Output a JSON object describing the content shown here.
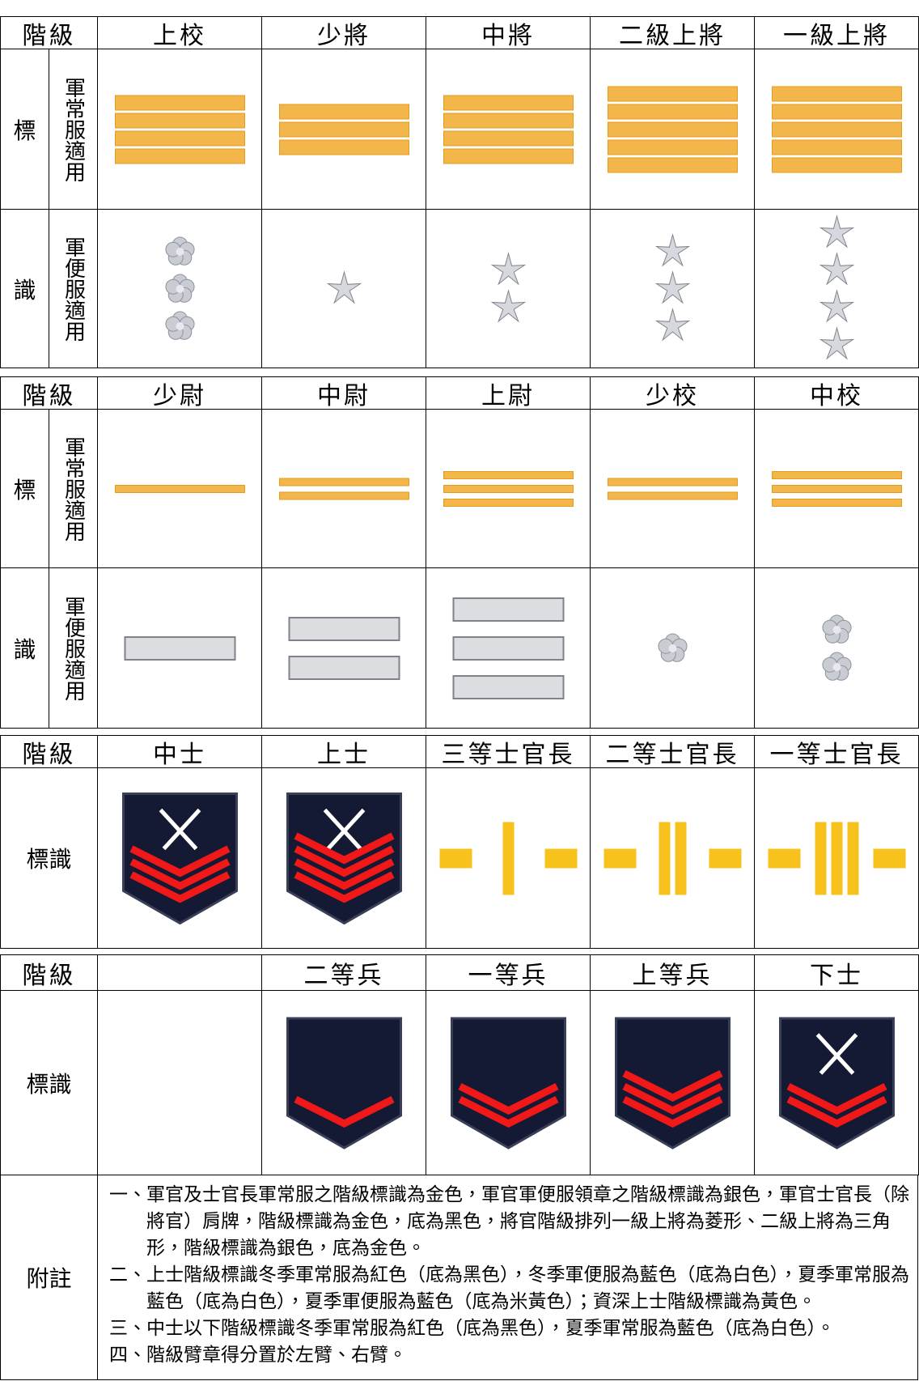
{
  "sections": [
    {
      "header_label": "階級",
      "ranks": [
        "上校",
        "少將",
        "中將",
        "二級上將",
        "一級上將"
      ],
      "rows": [
        {
          "label": "標",
          "sub": "軍常服適用"
        },
        {
          "label": "識",
          "sub": "軍便服適用"
        }
      ]
    },
    {
      "header_label": "階級",
      "ranks": [
        "少尉",
        "中尉",
        "上尉",
        "少校",
        "中校"
      ],
      "rows": [
        {
          "label": "標",
          "sub": "軍常服適用"
        },
        {
          "label": "識",
          "sub": "軍便服適用"
        }
      ]
    },
    {
      "header_label": "階級",
      "ranks": [
        "中士",
        "上士",
        "三等士官長",
        "二等士官長",
        "一等士官長"
      ],
      "rows": [
        {
          "label": "標識"
        }
      ]
    },
    {
      "header_label": "階級",
      "ranks": [
        null,
        "二等兵",
        "一等兵",
        "上等兵",
        "下士"
      ],
      "rows": [
        {
          "label": "標識"
        }
      ]
    }
  ],
  "notes": {
    "label": "附註",
    "items": [
      "一、軍官及士官長軍常服之階級標識為金色，軍官軍便服領章之階級標識為銀色，軍官士官長（除將官）肩牌，階級標識為金色，底為黑色，將官階級排列一級上將為菱形、二級上將為三角形，階級標識為銀色，底為金色。",
      "二、上士階級標識冬季軍常服為紅色（底為黑色），冬季軍便服為藍色（底為白色），夏季軍常服為藍色（底為白色），夏季軍便服為藍色（底為米黃色）；資深上士階級標識為黃色。",
      "三、中士以下階級標識冬季軍常服為紅色（底為黑色），夏季軍常服為藍色（底為白色）。",
      "四、階級臂章得分置於左臂、右臂。"
    ]
  }
}
